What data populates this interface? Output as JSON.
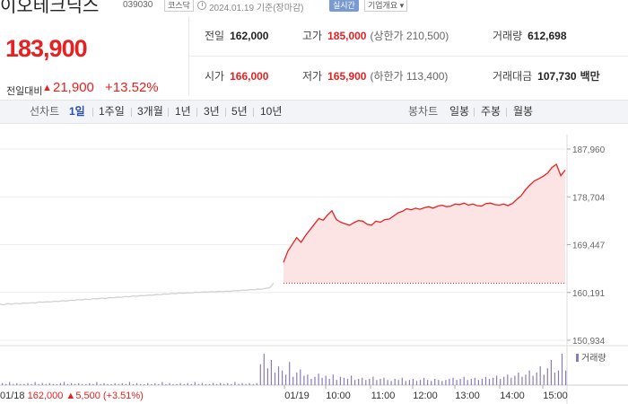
{
  "header": {
    "name": "이오테크닉스",
    "code": "039030",
    "market": "코스닥",
    "as_of": "2024.01.19 기준(장마감)",
    "disclosure": "실시간",
    "company": "기업개요"
  },
  "summary": {
    "price": "183,900",
    "change_label": "전일대비",
    "change_arrow": "▲",
    "change": "21,900",
    "change_pct": "+13.52%",
    "prev_label": "전일",
    "prev": "162,000",
    "high_label": "고가",
    "high": "185,000",
    "upper_limit": "(상한가 210,500)",
    "volume_label": "거래량",
    "volume": "612,698",
    "open_label": "시가",
    "open": "166,000",
    "low_label": "저가",
    "low": "165,900",
    "lower_limit": "(하한가 113,400)",
    "amount_label": "거래대금",
    "amount": "107,730",
    "amount_unit": "백만"
  },
  "toolbar": {
    "line_chart_label": "선차트",
    "periods": [
      "1일",
      "1주일",
      "3개월",
      "1년",
      "3년",
      "5년",
      "10년"
    ],
    "active_period": "1일",
    "candle_label": "봉차트",
    "candles": [
      "일봉",
      "주봉",
      "월봉"
    ]
  },
  "colors": {
    "up": "#e52222",
    "accent": "#2a4fa8",
    "volume": "#8a7ab8",
    "prev_day_line": "#cfcfcf"
  },
  "chart_data": {
    "type": "line",
    "y_ticks": [
      "187,960",
      "178,704",
      "169,447",
      "160,191",
      "150,934"
    ],
    "ylim": [
      150934,
      187960
    ],
    "x_tick_labels": [
      "01/19",
      "10:00",
      "11:00",
      "12:00",
      "13:00",
      "14:00",
      "15:00"
    ],
    "prev_close": 162000,
    "volume_label": "거래량",
    "footer_date": "01/18",
    "footer_close": "162,000",
    "footer_arrow": "▲",
    "footer_change": "5,500",
    "footer_pct": "(+3.51%)",
    "series": [
      {
        "name": "01/18",
        "values": [
          157900,
          157800,
          158050,
          157900,
          158100,
          158000,
          158150,
          158100,
          158200,
          158150,
          158350,
          158300,
          158400,
          158350,
          158500,
          158450,
          158600,
          158500,
          158700,
          158650,
          158800,
          158750,
          158900,
          158800,
          159000,
          158950,
          159100,
          159000,
          159200,
          159150,
          159300,
          159250,
          159400,
          159350,
          159500,
          159450,
          159600,
          159550,
          159700,
          159650,
          159800,
          159750,
          159900,
          159850,
          160000,
          159950,
          160100,
          160050,
          160150,
          160100,
          160250,
          160200,
          160300,
          160250,
          160350,
          160300,
          160400,
          160350,
          160450,
          160400,
          160550,
          160500,
          160650,
          160600,
          160750,
          160700,
          160850,
          160800,
          161000,
          161100,
          162000
        ]
      },
      {
        "name": "01/19",
        "values": [
          166000,
          168200,
          169500,
          170800,
          169900,
          171200,
          172300,
          173400,
          174500,
          174200,
          175200,
          176000,
          174300,
          173800,
          173500,
          173200,
          173700,
          174100,
          174000,
          173400,
          173200,
          174000,
          173800,
          174300,
          174400,
          175000,
          175600,
          175900,
          176400,
          176200,
          176500,
          176300,
          176600,
          176800,
          176500,
          176900,
          177100,
          176800,
          176900,
          177300,
          177200,
          177500,
          177100,
          177300,
          177000,
          176900,
          177400,
          177500,
          177200,
          177100,
          177300,
          177000,
          177400,
          178200,
          178900,
          180100,
          181000,
          181800,
          182200,
          182700,
          183300,
          184400,
          185000,
          182800,
          183900
        ]
      }
    ],
    "volume_values": [
      2,
      1,
      3,
      1,
      2,
      1,
      1,
      2,
      1,
      3,
      1,
      2,
      1,
      2,
      1,
      1,
      2,
      3,
      1,
      2,
      1,
      2,
      1,
      1,
      2,
      1,
      3,
      1,
      2,
      1,
      1,
      2,
      1,
      2,
      1,
      3,
      1,
      2,
      1,
      1,
      2,
      1,
      2,
      1,
      3,
      1,
      2,
      1,
      1,
      2,
      1,
      2,
      1,
      3,
      1,
      2,
      1,
      1,
      2,
      1,
      2,
      1,
      2,
      1,
      3,
      1,
      2,
      1,
      2,
      1,
      2,
      20,
      30,
      16,
      24,
      12,
      18,
      14,
      10,
      22,
      8,
      12,
      15,
      9,
      10,
      6,
      8,
      11,
      7,
      9,
      6,
      10,
      5,
      8,
      7,
      6,
      9,
      5,
      6,
      7,
      5,
      6,
      8,
      5,
      6,
      7,
      5,
      4,
      6,
      5,
      7,
      4,
      5,
      6,
      4,
      5,
      7,
      5,
      4,
      6,
      5,
      4,
      5,
      6,
      7,
      5,
      6,
      8,
      5,
      6,
      7,
      5,
      6,
      8,
      6,
      7,
      9,
      6,
      8,
      10,
      7,
      9,
      12,
      8,
      10,
      14,
      9,
      12,
      18,
      10,
      16,
      24,
      12,
      14,
      30,
      14
    ]
  }
}
